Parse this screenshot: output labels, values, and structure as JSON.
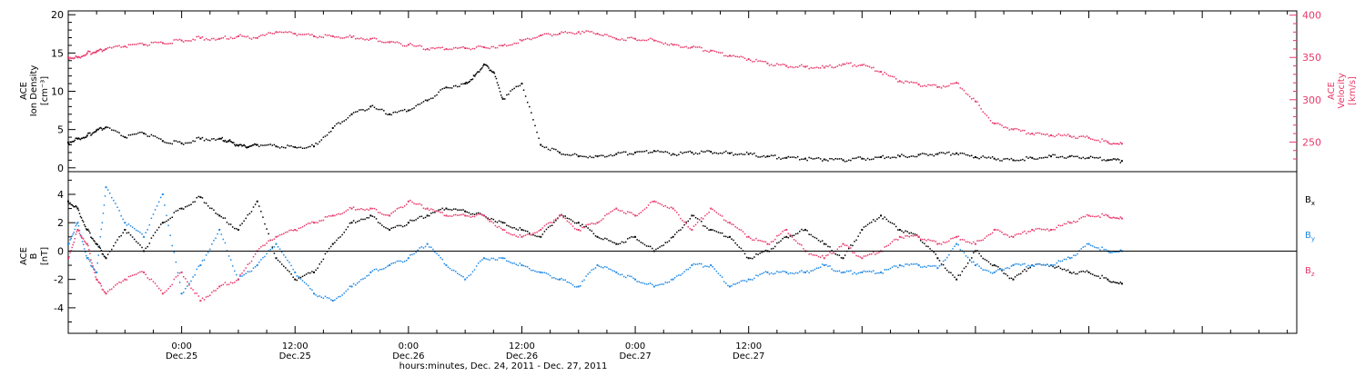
{
  "colors": {
    "black": "#000000",
    "blue": "#1e88e5",
    "red": "#e8386a"
  },
  "chart_data": [
    {
      "type": "scatter",
      "panel": "top",
      "ylabel_left_lines": [
        "ACE",
        "Ion Density",
        "[cm⁻³]"
      ],
      "ylabel_right_lines": [
        "ACE",
        "Velocity",
        "[km/s]"
      ],
      "ylim_left": [
        -0.5,
        20.5
      ],
      "ylim_right": [
        215,
        405
      ],
      "yticks_left": [
        0,
        5,
        10,
        15,
        20
      ],
      "yticks_right": [
        250,
        300,
        350,
        400
      ],
      "grid": false,
      "series": [
        {
          "axis": "left",
          "color": "#000000",
          "x": [
            0,
            1,
            2,
            3,
            4,
            6,
            8,
            10,
            12,
            14,
            16,
            17,
            18,
            19,
            20,
            22,
            24,
            26,
            28,
            30,
            32,
            34,
            36,
            38,
            40,
            42,
            43,
            44,
            45,
            46,
            48,
            50,
            52,
            54,
            56,
            58,
            60,
            62,
            64,
            66,
            68,
            70,
            72,
            74,
            76,
            78,
            80,
            82,
            84,
            86,
            88,
            90,
            92,
            94,
            96,
            98,
            100,
            102,
            104,
            106,
            108,
            110,
            111.5
          ],
          "y": [
            3.3,
            3.8,
            4.2,
            4.9,
            5.3,
            4.0,
            4.5,
            3.5,
            3.2,
            3.8,
            3.8,
            3.5,
            2.9,
            2.7,
            3.0,
            2.8,
            2.7,
            2.8,
            5.2,
            7.0,
            8.0,
            7.0,
            7.5,
            8.8,
            10.5,
            11.0,
            12.0,
            13.5,
            12.5,
            9.0,
            11.0,
            3.0,
            2.0,
            1.5,
            1.5,
            1.8,
            2.0,
            2.2,
            1.8,
            2.0,
            2.1,
            1.9,
            1.8,
            1.5,
            1.3,
            1.2,
            1.1,
            1.0,
            1.2,
            1.4,
            1.5,
            1.7,
            1.8,
            1.9,
            1.4,
            1.2,
            1.0,
            1.3,
            1.5,
            1.5,
            1.3,
            1.0,
            0.9
          ]
        },
        {
          "axis": "right",
          "color": "#e8386a",
          "x": [
            0,
            1,
            2,
            3,
            4,
            6,
            8,
            10,
            12,
            14,
            16,
            18,
            20,
            22,
            24,
            26,
            28,
            30,
            32,
            34,
            36,
            38,
            40,
            42,
            44,
            46,
            48,
            50,
            52,
            54,
            56,
            58,
            60,
            62,
            64,
            66,
            68,
            70,
            72,
            74,
            76,
            78,
            80,
            82,
            84,
            86,
            88,
            90,
            92,
            94,
            96,
            98,
            100,
            102,
            104,
            106,
            108,
            110,
            111.5
          ],
          "y": [
            350,
            350,
            355,
            357,
            360,
            363,
            365,
            367,
            370,
            373,
            372,
            375,
            373,
            380,
            378,
            375,
            375,
            374,
            372,
            368,
            365,
            360,
            360,
            361,
            362,
            364,
            370,
            376,
            378,
            380,
            378,
            372,
            372,
            370,
            365,
            362,
            358,
            352,
            348,
            343,
            340,
            339,
            338,
            342,
            341,
            333,
            322,
            318,
            315,
            320,
            298,
            272,
            265,
            260,
            258,
            257,
            255,
            250,
            248
          ]
        }
      ]
    },
    {
      "type": "scatter",
      "panel": "bottom",
      "ylabel_left_lines": [
        "ACE",
        "B",
        "[nT]"
      ],
      "ylim": [
        -5.8,
        5.6
      ],
      "yticks": [
        -4,
        -2,
        0,
        2,
        4
      ],
      "zero_line": true,
      "grid": false,
      "legend_position": "right",
      "x_tick_labels": [
        {
          "time": "0:00",
          "date": "Dec.25",
          "x": 12
        },
        {
          "time": "12:00",
          "date": "Dec.25",
          "x": 24
        },
        {
          "time": "0:00",
          "date": "Dec.26",
          "x": 36
        },
        {
          "time": "12:00",
          "date": "Dec.26",
          "x": 48
        },
        {
          "time": "0:00",
          "date": "Dec.27",
          "x": 60
        },
        {
          "time": "12:00",
          "date": "Dec.27",
          "x": 72
        }
      ],
      "xlabel": "hours:minutes, Dec. 24, 2011 - Dec. 27, 2011",
      "series": [
        {
          "name": "Bx",
          "name_sub": "x",
          "color": "#000000",
          "x": [
            0,
            1,
            2,
            3,
            4,
            6,
            8,
            10,
            12,
            14,
            16,
            18,
            20,
            22,
            24,
            26,
            28,
            30,
            32,
            34,
            36,
            38,
            40,
            42,
            44,
            46,
            48,
            50,
            52,
            54,
            56,
            58,
            60,
            62,
            64,
            66,
            68,
            70,
            72,
            74,
            76,
            78,
            80,
            82,
            84,
            86,
            88,
            90,
            92,
            94,
            96,
            98,
            100,
            102,
            104,
            106,
            108,
            110,
            111.5
          ],
          "y": [
            3.5,
            3.0,
            1.5,
            0.5,
            -0.5,
            1.5,
            0.0,
            2.0,
            3.0,
            3.8,
            2.5,
            1.5,
            3.5,
            -0.5,
            -2.0,
            -1.5,
            0.5,
            2.0,
            2.5,
            1.5,
            2.0,
            2.5,
            3.0,
            2.8,
            2.5,
            2.0,
            1.5,
            1.0,
            2.5,
            2.0,
            1.0,
            0.5,
            1.0,
            0.0,
            1.0,
            2.5,
            1.5,
            1.0,
            -0.5,
            0.0,
            1.0,
            1.5,
            0.5,
            -0.5,
            1.5,
            2.5,
            1.5,
            1.0,
            -0.5,
            -2.0,
            0.0,
            -1.0,
            -2.0,
            -1.0,
            -1.0,
            -1.5,
            -1.5,
            -2.0,
            -2.3
          ]
        },
        {
          "name": "By",
          "name_sub": "y",
          "color": "#1e88e5",
          "x": [
            0,
            1,
            2,
            3,
            4,
            6,
            8,
            10,
            12,
            14,
            16,
            18,
            20,
            22,
            24,
            26,
            28,
            30,
            32,
            34,
            36,
            38,
            40,
            42,
            44,
            46,
            48,
            50,
            52,
            54,
            56,
            58,
            60,
            62,
            64,
            66,
            68,
            70,
            72,
            74,
            76,
            78,
            80,
            82,
            84,
            86,
            88,
            90,
            92,
            94,
            96,
            98,
            100,
            102,
            104,
            106,
            108,
            110,
            111.5
          ],
          "y": [
            0.5,
            2.0,
            -0.5,
            -1.5,
            4.5,
            2.0,
            1.0,
            4.0,
            -3.0,
            -1.0,
            1.5,
            -2.0,
            -1.0,
            0.5,
            -1.5,
            -3.0,
            -3.5,
            -2.5,
            -1.5,
            -1.0,
            -0.5,
            0.5,
            -1.0,
            -2.0,
            -0.5,
            -0.5,
            -1.0,
            -1.5,
            -2.0,
            -2.5,
            -1.0,
            -1.5,
            -2.0,
            -2.5,
            -2.0,
            -1.0,
            -1.0,
            -2.5,
            -2.0,
            -1.5,
            -1.5,
            -1.5,
            -1.0,
            -1.5,
            -1.5,
            -1.5,
            -1.0,
            -1.0,
            -1.2,
            0.5,
            -1.0,
            -1.5,
            -1.0,
            -1.0,
            -1.0,
            -0.5,
            0.5,
            0.0,
            0.0
          ]
        },
        {
          "name": "Bz",
          "name_sub": "z",
          "color": "#e8386a",
          "x": [
            0,
            1,
            2,
            3,
            4,
            6,
            8,
            10,
            12,
            14,
            16,
            18,
            20,
            22,
            24,
            26,
            28,
            30,
            32,
            34,
            36,
            38,
            40,
            42,
            44,
            46,
            48,
            50,
            52,
            54,
            56,
            58,
            60,
            62,
            64,
            66,
            68,
            70,
            72,
            74,
            76,
            78,
            80,
            82,
            84,
            86,
            88,
            90,
            92,
            94,
            96,
            98,
            100,
            102,
            104,
            106,
            108,
            110,
            111.5
          ],
          "y": [
            -0.5,
            1.5,
            0.5,
            -2.0,
            -3.0,
            -2.0,
            -1.5,
            -3.0,
            -1.5,
            -3.5,
            -2.5,
            -2.0,
            0.0,
            1.0,
            1.5,
            2.0,
            2.5,
            3.0,
            3.0,
            2.5,
            3.5,
            3.0,
            2.5,
            2.5,
            2.5,
            1.5,
            1.0,
            1.5,
            2.5,
            1.5,
            2.0,
            3.0,
            2.5,
            3.5,
            3.0,
            1.5,
            3.0,
            2.0,
            1.0,
            0.5,
            1.5,
            0.0,
            -0.5,
            0.5,
            -0.5,
            0.0,
            1.0,
            1.0,
            0.5,
            1.0,
            0.5,
            1.5,
            1.0,
            1.5,
            1.5,
            2.0,
            2.5,
            2.5,
            2.3
          ]
        }
      ]
    }
  ]
}
